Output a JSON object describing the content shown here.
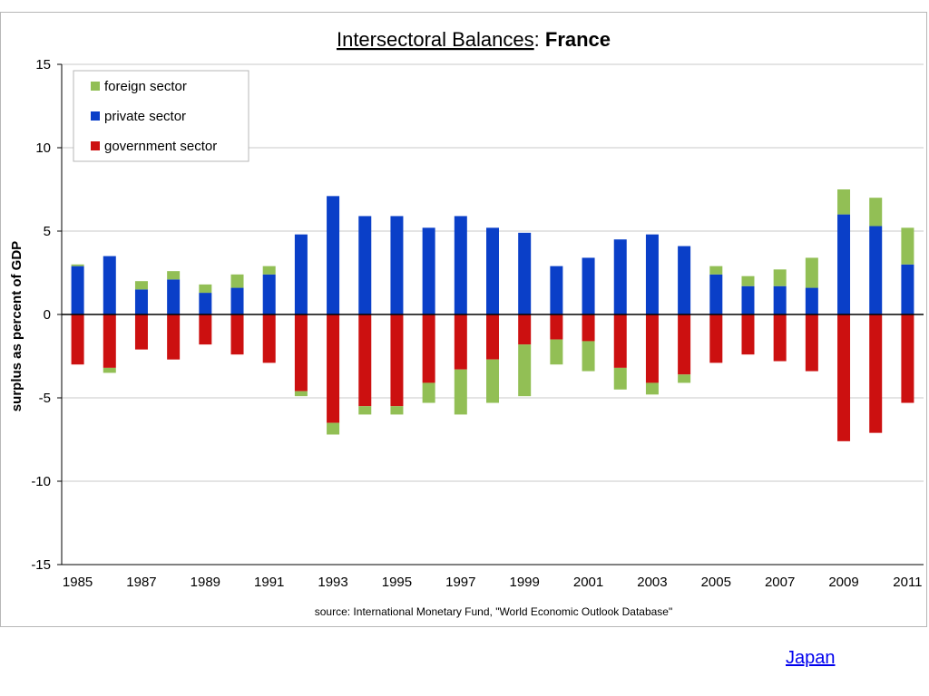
{
  "chart_data": {
    "type": "bar",
    "stacked": true,
    "title_part1": "Intersectoral Balances",
    "title_sep": ": ",
    "title_part2": "France",
    "ylabel": "surplus as percent of GDP",
    "ylim": [
      -15,
      15
    ],
    "yticks": [
      15,
      10,
      5,
      0,
      -5,
      -10,
      -15
    ],
    "grid": true,
    "legend_position": "top-left",
    "categories": [
      1985,
      1986,
      1987,
      1988,
      1989,
      1990,
      1991,
      1992,
      1993,
      1994,
      1995,
      1996,
      1997,
      1998,
      1999,
      2000,
      2001,
      2002,
      2003,
      2004,
      2005,
      2006,
      2007,
      2008,
      2009,
      2010,
      2011
    ],
    "xtick_labels": [
      "1985",
      "1987",
      "1989",
      "1991",
      "1993",
      "1995",
      "1997",
      "1999",
      "2001",
      "2003",
      "2005",
      "2007",
      "2009",
      "2011"
    ],
    "series": [
      {
        "name": "foreign sector",
        "color": "#92bf55",
        "values": [
          0.1,
          -0.3,
          0.5,
          0.5,
          0.5,
          0.8,
          0.5,
          -0.3,
          -0.7,
          -0.5,
          -0.5,
          -1.2,
          -2.7,
          -2.6,
          -3.1,
          -1.5,
          -1.8,
          -1.3,
          -0.7,
          -0.5,
          0.5,
          0.6,
          1.0,
          1.8,
          1.5,
          1.7,
          2.2
        ]
      },
      {
        "name": "private sector",
        "color": "#0a3fc8",
        "values": [
          2.9,
          3.5,
          1.5,
          2.1,
          1.3,
          1.6,
          2.4,
          4.8,
          7.1,
          5.9,
          5.9,
          5.2,
          5.9,
          5.2,
          4.9,
          2.9,
          3.4,
          4.5,
          4.8,
          4.1,
          2.4,
          1.7,
          1.7,
          1.6,
          6.0,
          5.3,
          3.0
        ]
      },
      {
        "name": "government sector",
        "color": "#cc1010",
        "values": [
          -3.0,
          -3.2,
          -2.1,
          -2.7,
          -1.8,
          -2.4,
          -2.9,
          -4.6,
          -6.5,
          -5.5,
          -5.5,
          -4.1,
          -3.3,
          -2.7,
          -1.8,
          -1.5,
          -1.6,
          -3.2,
          -4.1,
          -3.6,
          -2.9,
          -2.4,
          -2.8,
          -3.4,
          -7.6,
          -7.1,
          -5.3
        ]
      }
    ],
    "source": "source:  International Monetary Fund, \"World Economic Outlook Database\""
  },
  "link": {
    "label": "Japan"
  }
}
